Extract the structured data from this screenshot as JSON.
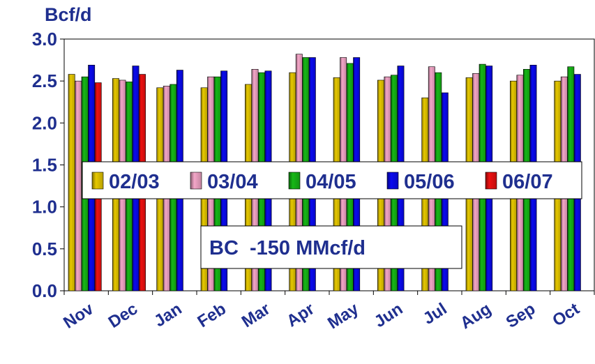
{
  "chart_data": {
    "type": "bar",
    "ylabel": "Bcf/d",
    "ylim": [
      0.0,
      3.0
    ],
    "yticks": [
      "0.0",
      "0.5",
      "1.0",
      "1.5",
      "2.0",
      "2.5",
      "3.0"
    ],
    "categories": [
      "Nov",
      "Dec",
      "Jan",
      "Feb",
      "Mar",
      "Apr",
      "May",
      "Jun",
      "Jul",
      "Aug",
      "Sep",
      "Oct"
    ],
    "series": [
      {
        "name": "02/03",
        "color": "#e6c800",
        "values": [
          2.58,
          2.53,
          2.42,
          2.42,
          2.46,
          2.6,
          2.54,
          2.51,
          2.3,
          2.54,
          2.5,
          2.5
        ]
      },
      {
        "name": "03/04",
        "color": "#f4a6c8",
        "values": [
          2.5,
          2.51,
          2.44,
          2.55,
          2.64,
          2.82,
          2.78,
          2.55,
          2.67,
          2.59,
          2.57,
          2.55
        ]
      },
      {
        "name": "04/05",
        "color": "#16b816",
        "values": [
          2.55,
          2.49,
          2.46,
          2.55,
          2.6,
          2.78,
          2.71,
          2.57,
          2.6,
          2.7,
          2.64,
          2.67
        ]
      },
      {
        "name": "05/06",
        "color": "#0a0af0",
        "values": [
          2.69,
          2.68,
          2.63,
          2.62,
          2.62,
          2.78,
          2.78,
          2.68,
          2.36,
          2.68,
          2.69,
          2.58
        ]
      },
      {
        "name": "06/07",
        "color": "#ee1111",
        "values": [
          2.48,
          2.58,
          null,
          null,
          null,
          null,
          null,
          null,
          null,
          null,
          null,
          null
        ]
      }
    ],
    "legend_position": "middle",
    "annotation": "BC  -150 MMcf/d",
    "text_color": "#1f2f8f",
    "grid": false
  }
}
